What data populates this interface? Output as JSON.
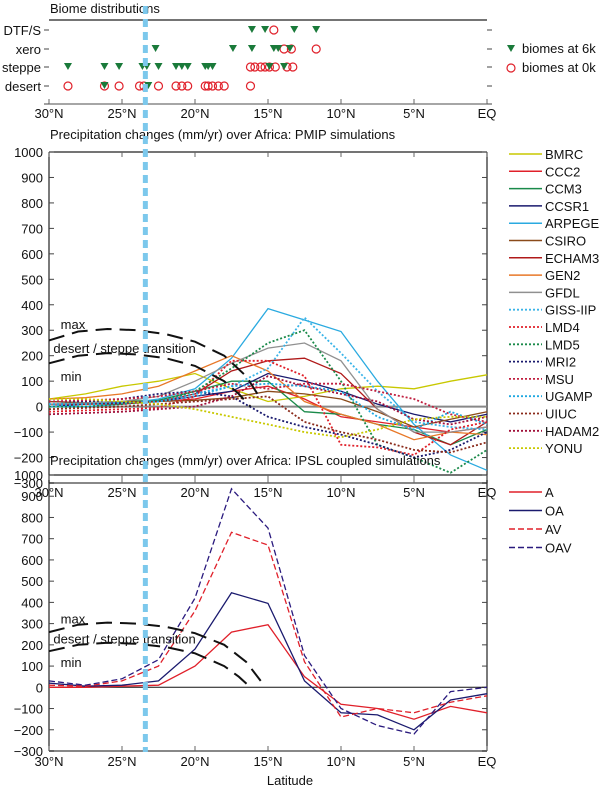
{
  "x_axis": {
    "label": "Latitude",
    "domain_deg_north": [
      30,
      0
    ],
    "ticks": [
      {
        "value": 30,
        "label": "30°N"
      },
      {
        "value": 25,
        "label": "25°N"
      },
      {
        "value": 20,
        "label": "20°N"
      },
      {
        "value": 15,
        "label": "15°N"
      },
      {
        "value": 10,
        "label": "10°N"
      },
      {
        "value": 5,
        "label": "5°N"
      },
      {
        "value": 0,
        "label": "EQ"
      }
    ]
  },
  "tropic_line": {
    "latitude": 23.4,
    "color": "#7cc8ec"
  },
  "chart_data": [
    {
      "type": "scatter",
      "title": "Biome distributions",
      "categories": [
        "DTF/S",
        "xero",
        "steppe",
        "desert"
      ],
      "legend": [
        {
          "label": "biomes at 6k",
          "marker": "triangle-down",
          "color": "#1a7a3a"
        },
        {
          "label": "biomes at 0k",
          "marker": "circle-open",
          "color": "#e0202a"
        }
      ],
      "series": [
        {
          "name": "biomes at 6k",
          "points": [
            {
              "lat": 16.1,
              "biome": "DTF/S"
            },
            {
              "lat": 15.2,
              "biome": "DTF/S"
            },
            {
              "lat": 13.2,
              "biome": "DTF/S"
            },
            {
              "lat": 11.7,
              "biome": "DTF/S"
            },
            {
              "lat": 22.7,
              "biome": "xero"
            },
            {
              "lat": 17.4,
              "biome": "xero"
            },
            {
              "lat": 16.1,
              "biome": "xero"
            },
            {
              "lat": 14.6,
              "biome": "xero"
            },
            {
              "lat": 14.3,
              "biome": "xero"
            },
            {
              "lat": 13.5,
              "biome": "xero"
            },
            {
              "lat": 28.7,
              "biome": "steppe"
            },
            {
              "lat": 26.2,
              "biome": "steppe"
            },
            {
              "lat": 25.2,
              "biome": "steppe"
            },
            {
              "lat": 23.6,
              "biome": "steppe"
            },
            {
              "lat": 23.3,
              "biome": "steppe"
            },
            {
              "lat": 22.5,
              "biome": "steppe"
            },
            {
              "lat": 21.3,
              "biome": "steppe"
            },
            {
              "lat": 20.9,
              "biome": "steppe"
            },
            {
              "lat": 20.5,
              "biome": "steppe"
            },
            {
              "lat": 19.3,
              "biome": "steppe"
            },
            {
              "lat": 19.1,
              "biome": "steppe"
            },
            {
              "lat": 18.8,
              "biome": "steppe"
            },
            {
              "lat": 14.9,
              "biome": "steppe"
            },
            {
              "lat": 13.9,
              "biome": "steppe"
            },
            {
              "lat": 26.2,
              "biome": "desert"
            },
            {
              "lat": 23.2,
              "biome": "desert"
            }
          ]
        },
        {
          "name": "biomes at 0k",
          "points": [
            {
              "lat": 14.6,
              "biome": "DTF/S"
            },
            {
              "lat": 13.9,
              "biome": "xero"
            },
            {
              "lat": 13.4,
              "biome": "xero"
            },
            {
              "lat": 11.7,
              "biome": "xero"
            },
            {
              "lat": 16.2,
              "biome": "steppe"
            },
            {
              "lat": 15.9,
              "biome": "steppe"
            },
            {
              "lat": 15.5,
              "biome": "steppe"
            },
            {
              "lat": 15.2,
              "biome": "steppe"
            },
            {
              "lat": 14.9,
              "biome": "steppe"
            },
            {
              "lat": 14.5,
              "biome": "steppe"
            },
            {
              "lat": 13.7,
              "biome": "steppe"
            },
            {
              "lat": 13.3,
              "biome": "steppe"
            },
            {
              "lat": 28.7,
              "biome": "desert"
            },
            {
              "lat": 26.2,
              "biome": "desert"
            },
            {
              "lat": 25.2,
              "biome": "desert"
            },
            {
              "lat": 23.8,
              "biome": "desert"
            },
            {
              "lat": 23.5,
              "biome": "desert"
            },
            {
              "lat": 22.5,
              "biome": "desert"
            },
            {
              "lat": 21.3,
              "biome": "desert"
            },
            {
              "lat": 20.9,
              "biome": "desert"
            },
            {
              "lat": 20.5,
              "biome": "desert"
            },
            {
              "lat": 19.3,
              "biome": "desert"
            },
            {
              "lat": 19.1,
              "biome": "desert"
            },
            {
              "lat": 18.8,
              "biome": "desert"
            },
            {
              "lat": 18.4,
              "biome": "desert"
            },
            {
              "lat": 18.0,
              "biome": "desert"
            },
            {
              "lat": 16.2,
              "biome": "desert"
            }
          ]
        }
      ]
    },
    {
      "type": "line",
      "title": "Precipitation changes (mm/yr) over Africa: PMIP simulations",
      "xlabel": "",
      "ylabel": "",
      "ylim": [
        -300,
        1000
      ],
      "yticks": [
        1000,
        900,
        800,
        700,
        600,
        500,
        400,
        300,
        200,
        100,
        0,
        -100,
        -200,
        -300
      ],
      "x": [
        30,
        27.5,
        25,
        22.5,
        20,
        17.5,
        15,
        12.5,
        10,
        7.5,
        5,
        2.5,
        0
      ],
      "annotations": [
        {
          "text": "max",
          "lat": 29.2,
          "value": 325
        },
        {
          "text": "desert / steppe transition",
          "lat": 29.7,
          "value": 230
        },
        {
          "text": "min",
          "lat": 29.2,
          "value": 120
        }
      ],
      "transition_curves": [
        {
          "name": "max",
          "lat": [
            30,
            28,
            26,
            24,
            22,
            20,
            18,
            16.5,
            15.5
          ],
          "values": [
            260,
            295,
            305,
            300,
            285,
            255,
            200,
            120,
            30
          ]
        },
        {
          "name": "min",
          "lat": [
            30,
            28,
            26,
            24,
            22,
            20,
            18,
            17,
            16.2
          ],
          "values": [
            170,
            200,
            210,
            205,
            190,
            160,
            100,
            50,
            0
          ]
        }
      ],
      "series": [
        {
          "name": "BMRC",
          "color": "#c8c800",
          "dash": "solid",
          "values": [
            30,
            50,
            80,
            100,
            130,
            70,
            20,
            40,
            70,
            80,
            70,
            100,
            125
          ]
        },
        {
          "name": "CCC2",
          "color": "#e0202a",
          "dash": "solid",
          "values": [
            10,
            10,
            15,
            20,
            30,
            60,
            80,
            30,
            -40,
            -60,
            -80,
            -100,
            -80
          ]
        },
        {
          "name": "CCM3",
          "color": "#1a8a4a",
          "dash": "solid",
          "values": [
            20,
            15,
            20,
            25,
            60,
            100,
            100,
            -20,
            -30,
            -70,
            -90,
            -150,
            -90
          ]
        },
        {
          "name": "CCSR1",
          "color": "#1a1a6e",
          "dash": "solid",
          "values": [
            0,
            10,
            15,
            20,
            40,
            60,
            130,
            100,
            60,
            10,
            -30,
            -60,
            -30
          ]
        },
        {
          "name": "ARPEGE",
          "color": "#2aaae0",
          "dash": "solid",
          "values": [
            0,
            0,
            10,
            30,
            70,
            190,
            385,
            340,
            295,
            100,
            -70,
            -190,
            -250
          ]
        },
        {
          "name": "CSIRO",
          "color": "#8a4a1a",
          "dash": "solid",
          "values": [
            20,
            15,
            20,
            20,
            25,
            35,
            60,
            50,
            30,
            -20,
            -80,
            -50,
            -20
          ]
        },
        {
          "name": "ECHAM3",
          "color": "#b01a1a",
          "dash": "solid",
          "values": [
            10,
            10,
            10,
            20,
            50,
            140,
            180,
            190,
            130,
            -10,
            -100,
            -150,
            -60
          ]
        },
        {
          "name": "GEN2",
          "color": "#e87828",
          "dash": "solid",
          "values": [
            30,
            35,
            50,
            80,
            140,
            200,
            140,
            20,
            -30,
            -70,
            -130,
            -100,
            -110
          ]
        },
        {
          "name": "GFDL",
          "color": "#909090",
          "dash": "solid",
          "values": [
            10,
            15,
            20,
            40,
            100,
            170,
            230,
            250,
            180,
            -10,
            -100,
            -100,
            -80
          ]
        },
        {
          "name": "GISS-IIP",
          "color": "#3ab4e8",
          "dash": "dotted",
          "values": [
            0,
            10,
            10,
            20,
            40,
            80,
            150,
            350,
            210,
            60,
            -60,
            -80,
            -90
          ]
        },
        {
          "name": "LMD4",
          "color": "#e0202a",
          "dash": "dotted",
          "values": [
            -20,
            -15,
            -10,
            -5,
            40,
            180,
            180,
            120,
            -150,
            -160,
            -190,
            -90,
            -60
          ]
        },
        {
          "name": "LMD5",
          "color": "#1a8a4a",
          "dash": "dotted",
          "values": [
            0,
            0,
            10,
            20,
            60,
            150,
            250,
            300,
            100,
            -150,
            -200,
            -260,
            -170
          ]
        },
        {
          "name": "MRI2",
          "color": "#1a1a6e",
          "dash": "dotted",
          "values": [
            20,
            20,
            30,
            50,
            60,
            40,
            -40,
            -80,
            -110,
            -150,
            -200,
            -170,
            -100
          ]
        },
        {
          "name": "MSU",
          "color": "#c02040",
          "dash": "dotted",
          "values": [
            20,
            25,
            30,
            40,
            60,
            90,
            70,
            90,
            90,
            60,
            30,
            -30,
            -60
          ]
        },
        {
          "name": "UGAMP",
          "color": "#20a8e0",
          "dash": "dotted",
          "values": [
            10,
            10,
            15,
            20,
            50,
            80,
            90,
            80,
            60,
            -40,
            -90,
            -20,
            -70
          ]
        },
        {
          "name": "UIUC",
          "color": "#8a2a1a",
          "dash": "dotted",
          "values": [
            -10,
            -5,
            0,
            10,
            20,
            30,
            40,
            -60,
            -100,
            -130,
            -170,
            -180,
            -140
          ]
        },
        {
          "name": "HADAM2",
          "color": "#a0103a",
          "dash": "dotted",
          "values": [
            -30,
            -25,
            -20,
            -10,
            0,
            40,
            120,
            80,
            50,
            20,
            -50,
            -70,
            -40
          ]
        },
        {
          "name": "YONU",
          "color": "#c8c800",
          "dash": "dotted",
          "values": [
            30,
            30,
            20,
            10,
            -10,
            -40,
            -70,
            -100,
            -120,
            -90,
            -50,
            -40,
            -40
          ]
        }
      ]
    },
    {
      "type": "line",
      "title": "Precipitation changes (mm/yr) over Africa: IPSL coupled simulations",
      "xlabel": "Latitude",
      "ylabel": "",
      "ylim": [
        -300,
        1000
      ],
      "yticks": [
        1000,
        900,
        800,
        700,
        600,
        500,
        400,
        300,
        200,
        100,
        0,
        -100,
        -200,
        -300
      ],
      "x": [
        30,
        27.5,
        25,
        22.5,
        20,
        17.5,
        15,
        12.5,
        10,
        7.5,
        5,
        2.5,
        0
      ],
      "annotations": [
        {
          "text": "max",
          "lat": 29.2,
          "value": 325
        },
        {
          "text": "desert / steppe transition",
          "lat": 29.7,
          "value": 230
        },
        {
          "text": "min",
          "lat": 29.2,
          "value": 120
        }
      ],
      "transition_curves": [
        {
          "name": "max",
          "lat": [
            30,
            28,
            26,
            24,
            22,
            20,
            18,
            16.5,
            15.5
          ],
          "values": [
            260,
            295,
            305,
            300,
            285,
            255,
            200,
            120,
            30
          ]
        },
        {
          "name": "min",
          "lat": [
            30,
            28,
            26,
            24,
            22,
            20,
            18,
            17,
            16.2
          ],
          "values": [
            170,
            200,
            210,
            205,
            190,
            160,
            100,
            50,
            0
          ]
        }
      ],
      "series": [
        {
          "name": "A",
          "color": "#e0202a",
          "dash": "solid",
          "values": [
            0,
            0,
            5,
            10,
            100,
            260,
            295,
            50,
            -80,
            -100,
            -150,
            -90,
            -120
          ]
        },
        {
          "name": "OA",
          "color": "#1a1a6e",
          "dash": "solid",
          "values": [
            20,
            5,
            10,
            30,
            180,
            445,
            395,
            30,
            -120,
            -130,
            -200,
            -60,
            -30
          ]
        },
        {
          "name": "AV",
          "color": "#e0202a",
          "dash": "dashed",
          "values": [
            10,
            5,
            30,
            100,
            360,
            730,
            670,
            120,
            -140,
            -100,
            -120,
            -70,
            -40
          ]
        },
        {
          "name": "OAV",
          "color": "#2a1a7e",
          "dash": "dashed",
          "values": [
            30,
            10,
            40,
            130,
            420,
            935,
            750,
            150,
            -100,
            -180,
            -220,
            -20,
            0
          ]
        }
      ]
    }
  ]
}
